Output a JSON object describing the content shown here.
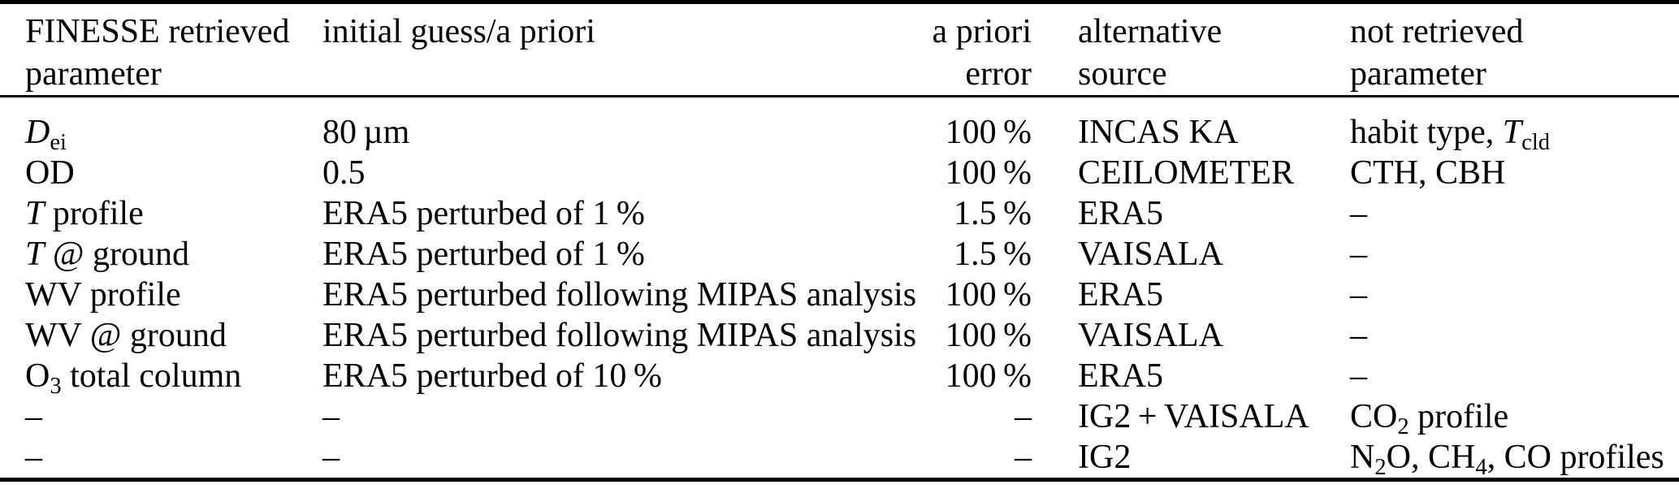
{
  "colors": {
    "text": "#000000",
    "background": "#ffffff",
    "rule": "#000000"
  },
  "table": {
    "headers": [
      {
        "name": "header-finesse-retrieved-parameter",
        "lines": [
          "FINESSE retrieved",
          "parameter"
        ]
      },
      {
        "name": "header-initial-guess-a-priori",
        "lines": [
          "initial guess/a priori"
        ]
      },
      {
        "name": "header-a-priori-error",
        "lines": [
          "a priori",
          "error"
        ]
      },
      {
        "name": "header-alternative-source",
        "lines": [
          "alternative",
          "source"
        ]
      },
      {
        "name": "header-not-retrieved-parameter",
        "lines": [
          "not retrieved",
          "parameter"
        ]
      }
    ],
    "rows": [
      [
        [
          {
            "t": "D",
            "s": "i"
          },
          {
            "t": "ei",
            "s": "sub"
          }
        ],
        [
          {
            "t": "80 µm"
          }
        ],
        [
          {
            "t": "100 %"
          }
        ],
        [
          {
            "t": "INCAS KA"
          }
        ],
        [
          {
            "t": "habit type, "
          },
          {
            "t": "T",
            "s": "i"
          },
          {
            "t": "cld",
            "s": "sub"
          }
        ]
      ],
      [
        [
          {
            "t": "OD"
          }
        ],
        [
          {
            "t": "0.5"
          }
        ],
        [
          {
            "t": "100 %"
          }
        ],
        [
          {
            "t": "CEILOMETER"
          }
        ],
        [
          {
            "t": "CTH, CBH"
          }
        ]
      ],
      [
        [
          {
            "t": "T",
            "s": "i"
          },
          {
            "t": " profile"
          }
        ],
        [
          {
            "t": "ERA5 perturbed of 1 %"
          }
        ],
        [
          {
            "t": "1.5 %"
          }
        ],
        [
          {
            "t": "ERA5"
          }
        ],
        [
          {
            "t": "–"
          }
        ]
      ],
      [
        [
          {
            "t": "T",
            "s": "i"
          },
          {
            "t": " @ ground"
          }
        ],
        [
          {
            "t": "ERA5 perturbed of 1 %"
          }
        ],
        [
          {
            "t": "1.5 %"
          }
        ],
        [
          {
            "t": "VAISALA"
          }
        ],
        [
          {
            "t": "–"
          }
        ]
      ],
      [
        [
          {
            "t": "WV profile"
          }
        ],
        [
          {
            "t": "ERA5 perturbed following MIPAS analysis"
          }
        ],
        [
          {
            "t": "100 %"
          }
        ],
        [
          {
            "t": "ERA5"
          }
        ],
        [
          {
            "t": "–"
          }
        ]
      ],
      [
        [
          {
            "t": "WV @ ground"
          }
        ],
        [
          {
            "t": "ERA5 perturbed following MIPAS analysis"
          }
        ],
        [
          {
            "t": "100 %"
          }
        ],
        [
          {
            "t": "VAISALA"
          }
        ],
        [
          {
            "t": "–"
          }
        ]
      ],
      [
        [
          {
            "t": "O"
          },
          {
            "t": "3",
            "s": "sub"
          },
          {
            "t": " total column"
          }
        ],
        [
          {
            "t": "ERA5 perturbed of 10 %"
          }
        ],
        [
          {
            "t": "100 %"
          }
        ],
        [
          {
            "t": "ERA5"
          }
        ],
        [
          {
            "t": "–"
          }
        ]
      ],
      [
        [
          {
            "t": "–"
          }
        ],
        [
          {
            "t": "–"
          }
        ],
        [
          {
            "t": "–"
          }
        ],
        [
          {
            "t": "IG2 + VAISALA"
          }
        ],
        [
          {
            "t": "CO"
          },
          {
            "t": "2",
            "s": "sub"
          },
          {
            "t": " profile"
          }
        ]
      ],
      [
        [
          {
            "t": "–"
          }
        ],
        [
          {
            "t": "–"
          }
        ],
        [
          {
            "t": "–"
          }
        ],
        [
          {
            "t": "IG2"
          }
        ],
        [
          {
            "t": "N"
          },
          {
            "t": "2",
            "s": "sub"
          },
          {
            "t": "O, CH"
          },
          {
            "t": "4",
            "s": "sub"
          },
          {
            "t": ", CO profiles"
          }
        ]
      ]
    ],
    "cell_names": [
      "cell-retrieved-parameter",
      "cell-initial-guess",
      "cell-a-priori-error",
      "cell-alternative-source",
      "cell-not-retrieved-parameter"
    ]
  }
}
